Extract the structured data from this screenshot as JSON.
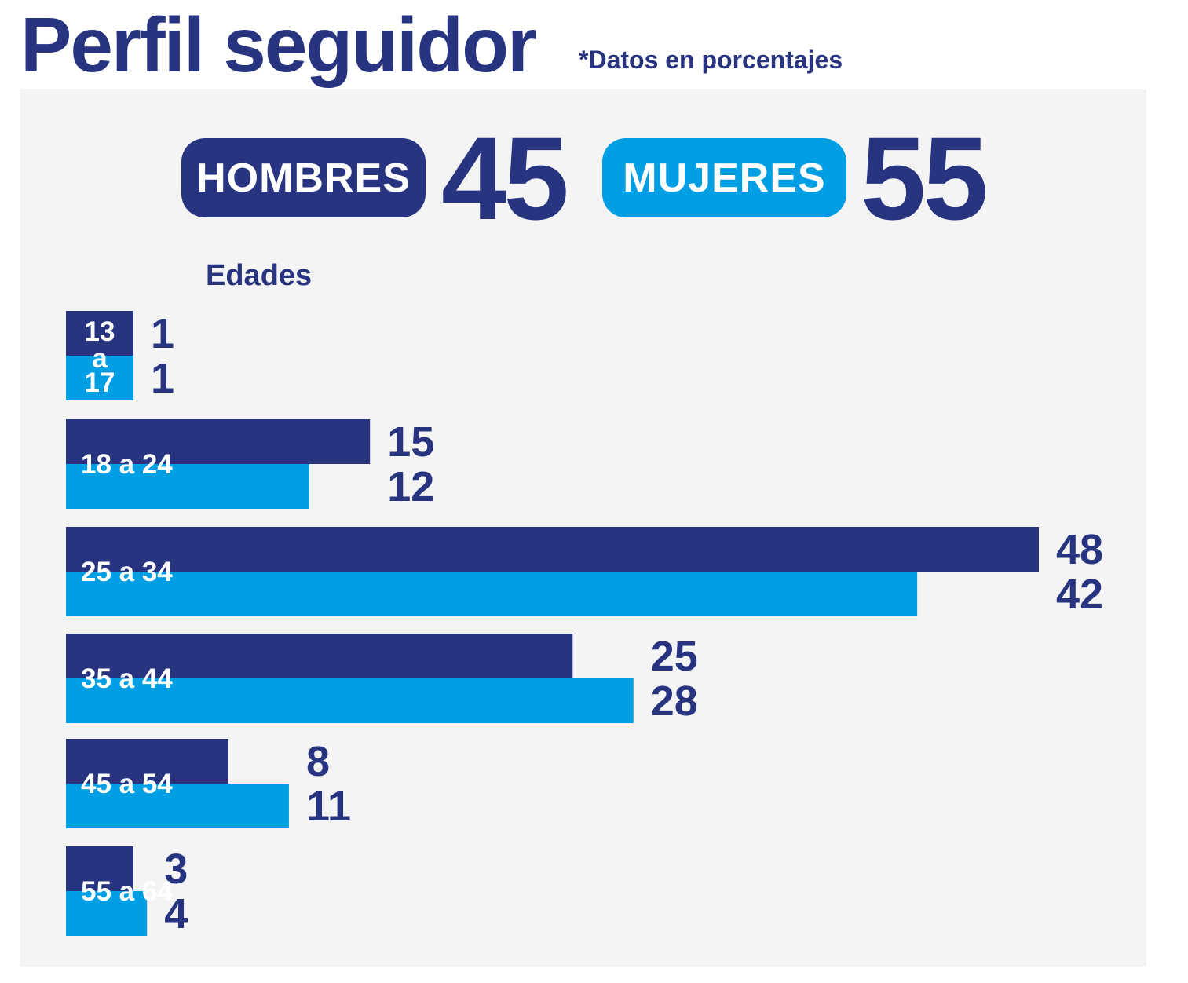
{
  "header": {
    "title": "Perfil seguidor",
    "note": "*Datos en porcentajes"
  },
  "gender": {
    "men_label": "HOMBRES",
    "men_value": "45",
    "women_label": "MUJERES",
    "women_value": "55"
  },
  "colors": {
    "men": "#293480",
    "women": "#009ee2",
    "panel": "#f4f4f5"
  },
  "chart_data": {
    "type": "bar",
    "orientation": "horizontal",
    "title": "Edades",
    "categories": [
      "13 a 17",
      "18 a 24",
      "25 a 34",
      "35 a 44",
      "45 a 54",
      "55 a 64"
    ],
    "series": [
      {
        "name": "HOMBRES",
        "values": [
          1,
          15,
          48,
          25,
          8,
          3
        ]
      },
      {
        "name": "MUJERES",
        "values": [
          1,
          12,
          42,
          28,
          11,
          4
        ]
      }
    ],
    "grid": false
  }
}
